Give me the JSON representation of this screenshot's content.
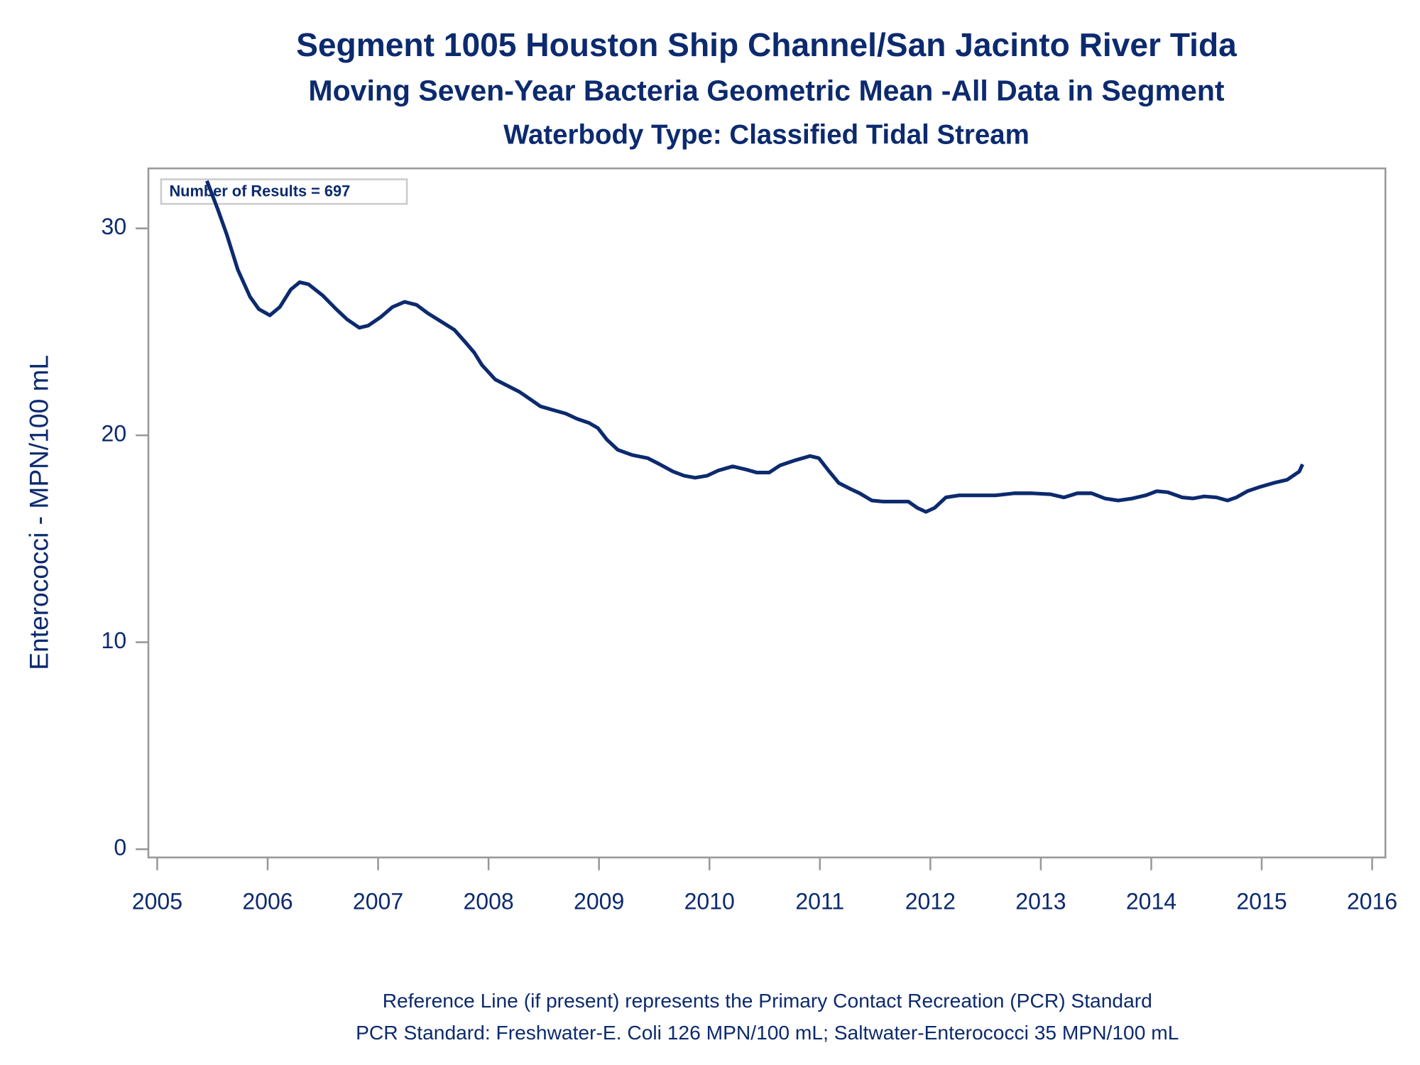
{
  "chart_data": {
    "type": "line",
    "title": "Segment 1005   Houston Ship Channel/San Jacinto River Tida",
    "subtitles": [
      "Moving Seven-Year Bacteria Geometric Mean -All Data in Segment",
      "Waterbody Type: Classified Tidal Stream"
    ],
    "ylabel": "Enterococci - MPN/100 mL",
    "annotation": "Number of Results = 697",
    "footnotes": [
      "Reference Line (if present) represents the Primary Contact Recreation (PCR) Standard",
      "PCR Standard: Freshwater-E. Coli 126 MPN/100 mL; Saltwater-Enterococci 35 MPN/100 mL"
    ],
    "color": "#0c2a6e",
    "xlim": [
      2004.92,
      2016.12
    ],
    "xticks": [
      2005,
      2006,
      2007,
      2008,
      2009,
      2010,
      2011,
      2012,
      2013,
      2014,
      2015,
      2016
    ],
    "ylim": [
      -0.4,
      32.9
    ],
    "yticks": [
      0,
      10,
      20,
      30
    ],
    "x": [
      2005.45,
      2005.55,
      2005.63,
      2005.73,
      2005.84,
      2005.92,
      2006.02,
      2006.11,
      2006.21,
      2006.29,
      2006.37,
      2006.5,
      2006.62,
      2006.72,
      2006.83,
      2006.91,
      2007.02,
      2007.13,
      2007.24,
      2007.35,
      2007.45,
      2007.57,
      2007.69,
      2007.79,
      2007.87,
      2007.94,
      2008.06,
      2008.17,
      2008.28,
      2008.39,
      2008.47,
      2008.6,
      2008.7,
      2008.8,
      2008.91,
      2008.99,
      2009.07,
      2009.17,
      2009.3,
      2009.44,
      2009.55,
      2009.67,
      2009.77,
      2009.87,
      2009.98,
      2010.08,
      2010.21,
      2010.33,
      2010.43,
      2010.54,
      2010.64,
      2010.78,
      2010.91,
      2010.99,
      2011.07,
      2011.17,
      2011.28,
      2011.36,
      2011.47,
      2011.57,
      2011.69,
      2011.8,
      2011.88,
      2011.96,
      2012.04,
      2012.14,
      2012.26,
      2012.43,
      2012.59,
      2012.76,
      2012.92,
      2013.09,
      2013.21,
      2013.33,
      2013.46,
      2013.58,
      2013.7,
      2013.83,
      2013.95,
      2014.05,
      2014.15,
      2014.28,
      2014.38,
      2014.48,
      2014.59,
      2014.69,
      2014.77,
      2014.87,
      2014.98,
      2015.11,
      2015.23,
      2015.34,
      2015.37
    ],
    "values": [
      32.3,
      30.9,
      29.7,
      28.0,
      26.7,
      26.1,
      25.8,
      26.2,
      27.05,
      27.4,
      27.3,
      26.75,
      26.1,
      25.6,
      25.2,
      25.3,
      25.7,
      26.2,
      26.45,
      26.3,
      25.9,
      25.5,
      25.1,
      24.5,
      24.0,
      23.4,
      22.7,
      22.4,
      22.1,
      21.7,
      21.4,
      21.2,
      21.05,
      20.8,
      20.6,
      20.35,
      19.8,
      19.3,
      19.05,
      18.9,
      18.6,
      18.25,
      18.05,
      17.95,
      18.05,
      18.3,
      18.5,
      18.35,
      18.2,
      18.2,
      18.55,
      18.8,
      19.0,
      18.9,
      18.35,
      17.7,
      17.4,
      17.2,
      16.85,
      16.8,
      16.8,
      16.8,
      16.5,
      16.3,
      16.5,
      17.0,
      17.1,
      17.1,
      17.1,
      17.2,
      17.2,
      17.15,
      17.0,
      17.2,
      17.2,
      16.95,
      16.85,
      16.95,
      17.1,
      17.3,
      17.25,
      17.0,
      16.95,
      17.05,
      17.0,
      16.85,
      17.0,
      17.3,
      17.5,
      17.7,
      17.85,
      18.25,
      18.6
    ]
  }
}
